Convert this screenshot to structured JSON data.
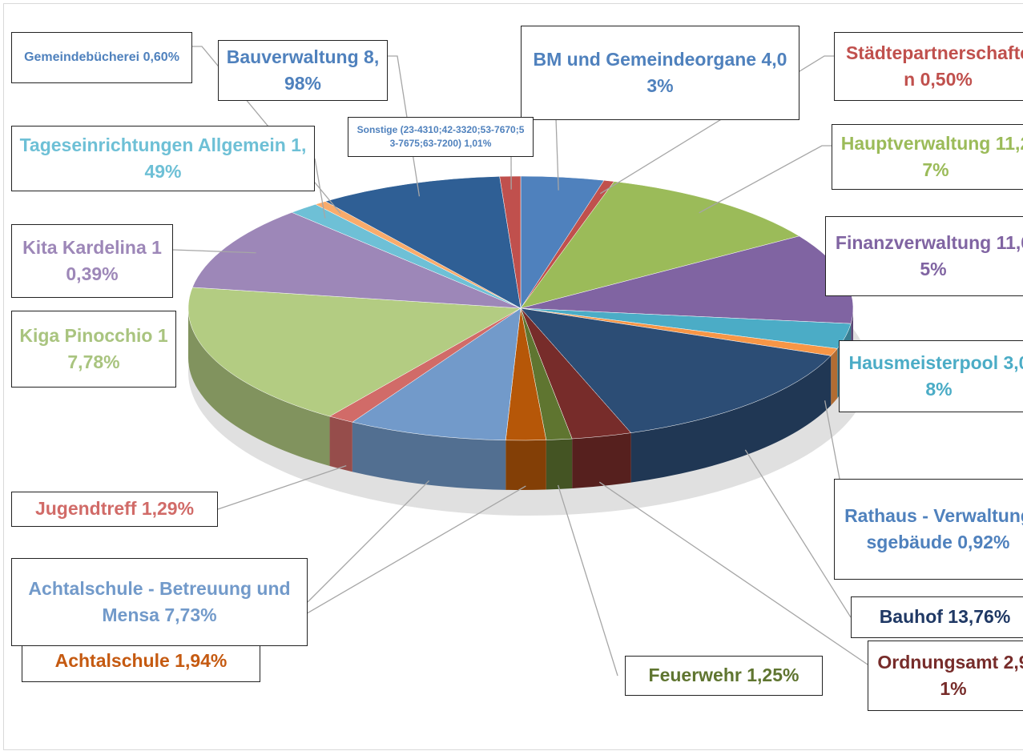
{
  "chart_data": {
    "type": "pie3d",
    "categories": [
      "BM und Gemeindeorgane",
      "Städtepartnerschaften",
      "Hauptverwaltung",
      "Finanzverwaltung",
      "Hausmeisterpool",
      "Rathaus - Verwaltungsgebäude",
      "Bauhof",
      "Ordnungsamt",
      "Feuerwehr",
      "Achtalschule ",
      "Achtalschule - Betreuung und Mensa",
      "Jugendtreff",
      "Kiga Pinocchio",
      "Kita Kardelina",
      "Tageseinrichtungen Allgemein",
      "Gemeindebücherei",
      "Bauverwaltung",
      "Sonstige (23-4310;42-3320;53-7670;53-7675;63-7200)"
    ],
    "values": [
      4.03,
      0.5,
      11.27,
      11.05,
      3.08,
      0.92,
      13.76,
      2.91,
      1.25,
      1.94,
      7.73,
      1.29,
      17.78,
      10.39,
      1.49,
      0.6,
      8.98,
      1.01
    ],
    "value_labels": [
      "4,03%",
      "0,50%",
      "11,27%",
      "11,05%",
      "3,08%",
      "0,92%",
      "13,76%",
      "2,91%",
      "1,25%",
      "1,94%",
      "7,73%",
      "1,29%",
      "17,78%",
      "10,39%",
      "1,49%",
      "0,60%",
      "8,98%",
      "1,01%"
    ],
    "colors": [
      "#4f81bd",
      "#c0504d",
      "#9bbb59",
      "#8064a2",
      "#4bacc6",
      "#f79646",
      "#2c4d75",
      "#772c2a",
      "#5f7530",
      "#b65708",
      "#729aca",
      "#d16b68",
      "#b3cc82",
      "#9d87b8",
      "#6ec0d6",
      "#f9ab6b",
      "#2f5f95",
      "#c0504d"
    ],
    "label_colors": [
      "#4f81bd",
      "#c0504d",
      "#9bbb59",
      "#8064a2",
      "#4bacc6",
      "#4f81bd",
      "#1f3864",
      "#772c2a",
      "#5f7530",
      "#c55a11",
      "#729aca",
      "#d16b68",
      "#a9c47f",
      "#9d87b8",
      "#6ec0d6",
      "#4f81bd",
      "#4f81bd",
      "#4f81bd"
    ]
  }
}
